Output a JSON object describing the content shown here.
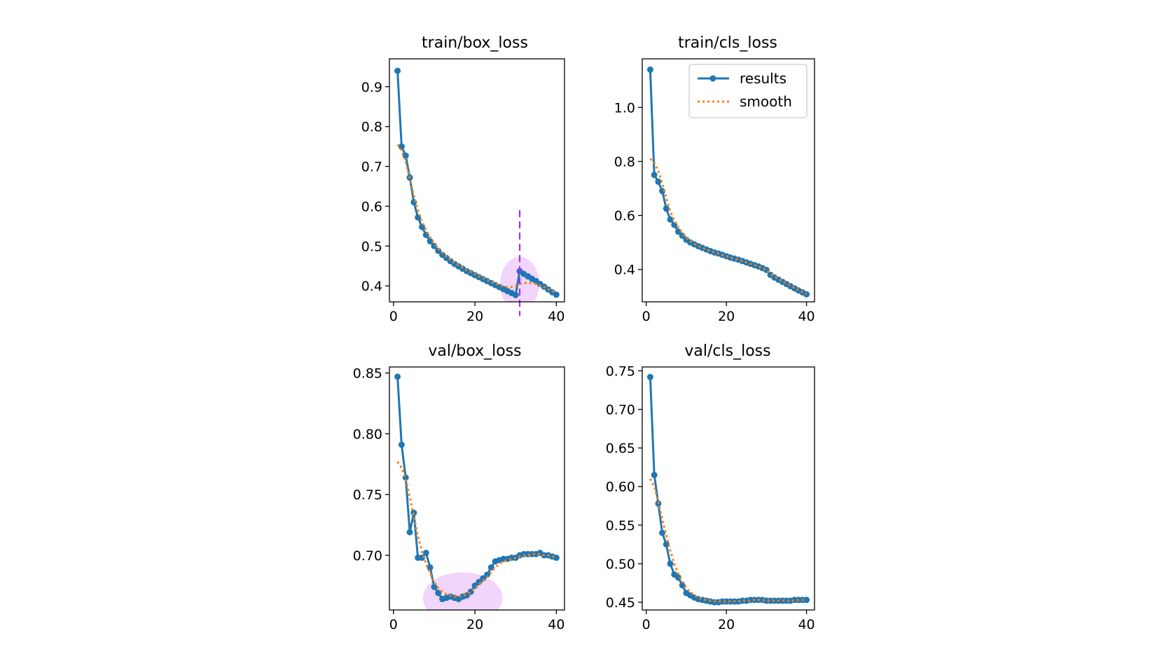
{
  "colors": {
    "results": "#1f77b4",
    "smooth": "#ff7f0e",
    "highlight": "#e6b3f5",
    "marker_line": "#9b30ff"
  },
  "chart_data": [
    {
      "type": "line",
      "title": "train/box_loss",
      "xlim": [
        -1,
        42
      ],
      "ylim": [
        0.36,
        0.97
      ],
      "xticks": [
        0,
        20,
        40
      ],
      "yticks": [
        0.4,
        0.5,
        0.6,
        0.7,
        0.8,
        0.9
      ],
      "tick_labels_x": [
        "0",
        "20",
        "40"
      ],
      "tick_labels_y": [
        "0.4",
        "0.5",
        "0.6",
        "0.7",
        "0.8",
        "0.9"
      ],
      "series": [
        {
          "name": "results",
          "style": "solid-markers",
          "x": [
            1,
            2,
            3,
            4,
            5,
            6,
            7,
            8,
            9,
            10,
            11,
            12,
            13,
            14,
            15,
            16,
            17,
            18,
            19,
            20,
            21,
            22,
            23,
            24,
            25,
            26,
            27,
            28,
            29,
            30,
            31,
            32,
            33,
            34,
            35,
            36,
            37,
            38,
            39,
            40
          ],
          "y": [
            0.94,
            0.75,
            0.727,
            0.672,
            0.61,
            0.572,
            0.548,
            0.528,
            0.512,
            0.5,
            0.488,
            0.478,
            0.47,
            0.462,
            0.455,
            0.449,
            0.443,
            0.437,
            0.432,
            0.427,
            0.422,
            0.417,
            0.412,
            0.407,
            0.402,
            0.397,
            0.392,
            0.387,
            0.382,
            0.377,
            0.437,
            0.43,
            0.424,
            0.418,
            0.412,
            0.405,
            0.398,
            0.391,
            0.384,
            0.378
          ]
        },
        {
          "name": "smooth",
          "style": "dotted",
          "x": [
            1,
            2,
            3,
            4,
            5,
            6,
            7,
            8,
            9,
            10,
            11,
            12,
            13,
            14,
            15,
            16,
            17,
            18,
            19,
            20,
            21,
            22,
            23,
            24,
            25,
            26,
            27,
            28,
            29,
            30,
            31,
            32,
            33,
            34,
            35,
            36,
            37,
            38,
            39,
            40
          ],
          "y": [
            0.755,
            0.74,
            0.71,
            0.67,
            0.626,
            0.59,
            0.562,
            0.54,
            0.522,
            0.507,
            0.494,
            0.483,
            0.474,
            0.466,
            0.458,
            0.452,
            0.446,
            0.44,
            0.435,
            0.43,
            0.425,
            0.42,
            0.415,
            0.41,
            0.406,
            0.402,
            0.399,
            0.397,
            0.397,
            0.4,
            0.405,
            0.407,
            0.408,
            0.407,
            0.405,
            0.401,
            0.397,
            0.392,
            0.387,
            0.382
          ]
        }
      ],
      "annotations": {
        "vline_x": 31,
        "vline_y": [
          0.325,
          0.59
        ],
        "ellipse": {
          "cx": 31,
          "cy": 0.405,
          "rx": 4.8,
          "ry": 0.068
        }
      }
    },
    {
      "type": "line",
      "title": "train/cls_loss",
      "xlim": [
        -1,
        42
      ],
      "ylim": [
        0.28,
        1.18
      ],
      "xticks": [
        0,
        20,
        40
      ],
      "yticks": [
        0.4,
        0.6,
        0.8,
        1.0
      ],
      "tick_labels_x": [
        "0",
        "20",
        "40"
      ],
      "tick_labels_y": [
        "0.4",
        "0.6",
        "0.8",
        "1.0"
      ],
      "legend": {
        "position": "top-right",
        "labels": [
          "results",
          "smooth"
        ]
      },
      "series": [
        {
          "name": "results",
          "style": "solid-markers",
          "x": [
            1,
            2,
            3,
            4,
            5,
            6,
            7,
            8,
            9,
            10,
            11,
            12,
            13,
            14,
            15,
            16,
            17,
            18,
            19,
            20,
            21,
            22,
            23,
            24,
            25,
            26,
            27,
            28,
            29,
            30,
            31,
            32,
            33,
            34,
            35,
            36,
            37,
            38,
            39,
            40
          ],
          "y": [
            1.14,
            0.75,
            0.725,
            0.69,
            0.625,
            0.585,
            0.565,
            0.54,
            0.525,
            0.51,
            0.5,
            0.493,
            0.486,
            0.48,
            0.474,
            0.468,
            0.463,
            0.459,
            0.454,
            0.449,
            0.444,
            0.44,
            0.436,
            0.431,
            0.426,
            0.421,
            0.416,
            0.411,
            0.405,
            0.398,
            0.38,
            0.37,
            0.362,
            0.354,
            0.346,
            0.338,
            0.33,
            0.322,
            0.315,
            0.308
          ]
        },
        {
          "name": "smooth",
          "style": "dotted",
          "x": [
            1,
            2,
            3,
            4,
            5,
            6,
            7,
            8,
            9,
            10,
            11,
            12,
            13,
            14,
            15,
            16,
            17,
            18,
            19,
            20,
            21,
            22,
            23,
            24,
            25,
            26,
            27,
            28,
            29,
            30,
            31,
            32,
            33,
            34,
            35,
            36,
            37,
            38,
            39,
            40
          ],
          "y": [
            0.81,
            0.795,
            0.765,
            0.72,
            0.665,
            0.615,
            0.582,
            0.556,
            0.535,
            0.518,
            0.505,
            0.495,
            0.487,
            0.48,
            0.474,
            0.468,
            0.463,
            0.459,
            0.454,
            0.449,
            0.444,
            0.44,
            0.436,
            0.431,
            0.426,
            0.421,
            0.416,
            0.411,
            0.405,
            0.398,
            0.384,
            0.374,
            0.365,
            0.356,
            0.348,
            0.34,
            0.332,
            0.324,
            0.316,
            0.309
          ]
        }
      ]
    },
    {
      "type": "line",
      "title": "val/box_loss",
      "xlim": [
        -1,
        42
      ],
      "ylim": [
        0.655,
        0.855
      ],
      "xticks": [
        0,
        20,
        40
      ],
      "yticks": [
        0.7,
        0.75,
        0.8,
        0.85
      ],
      "tick_labels_x": [
        "0",
        "20",
        "40"
      ],
      "tick_labels_y": [
        "0.70",
        "0.75",
        "0.80",
        "0.85"
      ],
      "series": [
        {
          "name": "results",
          "style": "solid-markers",
          "x": [
            1,
            2,
            3,
            4,
            5,
            6,
            7,
            8,
            9,
            10,
            11,
            12,
            13,
            14,
            15,
            16,
            17,
            18,
            19,
            20,
            21,
            22,
            23,
            24,
            25,
            26,
            27,
            28,
            29,
            30,
            31,
            32,
            33,
            34,
            35,
            36,
            37,
            38,
            39,
            40
          ],
          "y": [
            0.847,
            0.791,
            0.764,
            0.719,
            0.735,
            0.698,
            0.698,
            0.702,
            0.69,
            0.674,
            0.669,
            0.664,
            0.665,
            0.666,
            0.665,
            0.664,
            0.666,
            0.667,
            0.67,
            0.675,
            0.678,
            0.681,
            0.684,
            0.69,
            0.695,
            0.696,
            0.697,
            0.697,
            0.698,
            0.698,
            0.7,
            0.701,
            0.701,
            0.701,
            0.701,
            0.702,
            0.7,
            0.7,
            0.699,
            0.698
          ]
        },
        {
          "name": "smooth",
          "style": "dotted",
          "x": [
            1,
            2,
            3,
            4,
            5,
            6,
            7,
            8,
            9,
            10,
            11,
            12,
            13,
            14,
            15,
            16,
            17,
            18,
            19,
            20,
            21,
            22,
            23,
            24,
            25,
            26,
            27,
            28,
            29,
            30,
            31,
            32,
            33,
            34,
            35,
            36,
            37,
            38,
            39,
            40
          ],
          "y": [
            0.777,
            0.772,
            0.763,
            0.748,
            0.732,
            0.716,
            0.703,
            0.693,
            0.685,
            0.678,
            0.673,
            0.67,
            0.668,
            0.667,
            0.666,
            0.666,
            0.667,
            0.668,
            0.67,
            0.673,
            0.676,
            0.679,
            0.682,
            0.686,
            0.69,
            0.693,
            0.695,
            0.696,
            0.697,
            0.698,
            0.699,
            0.7,
            0.7,
            0.701,
            0.701,
            0.701,
            0.7,
            0.7,
            0.699,
            0.698
          ]
        }
      ],
      "annotations": {
        "ellipse": {
          "cx": 17,
          "cy": 0.665,
          "rx": 9.8,
          "ry": 0.021
        }
      }
    },
    {
      "type": "line",
      "title": "val/cls_loss",
      "xlim": [
        -1,
        42
      ],
      "ylim": [
        0.44,
        0.755
      ],
      "xticks": [
        0,
        20,
        40
      ],
      "yticks": [
        0.45,
        0.5,
        0.55,
        0.6,
        0.65,
        0.7,
        0.75
      ],
      "tick_labels_x": [
        "0",
        "20",
        "40"
      ],
      "tick_labels_y": [
        "0.45",
        "0.50",
        "0.55",
        "0.60",
        "0.65",
        "0.70",
        "0.75"
      ],
      "series": [
        {
          "name": "results",
          "style": "solid-markers",
          "x": [
            1,
            2,
            3,
            4,
            5,
            6,
            7,
            8,
            9,
            10,
            11,
            12,
            13,
            14,
            15,
            16,
            17,
            18,
            19,
            20,
            21,
            22,
            23,
            24,
            25,
            26,
            27,
            28,
            29,
            30,
            31,
            32,
            33,
            34,
            35,
            36,
            37,
            38,
            39,
            40
          ],
          "y": [
            0.742,
            0.615,
            0.578,
            0.54,
            0.525,
            0.5,
            0.486,
            0.482,
            0.472,
            0.462,
            0.459,
            0.456,
            0.454,
            0.453,
            0.452,
            0.451,
            0.45,
            0.45,
            0.451,
            0.451,
            0.451,
            0.451,
            0.451,
            0.452,
            0.452,
            0.453,
            0.453,
            0.453,
            0.453,
            0.452,
            0.452,
            0.452,
            0.452,
            0.452,
            0.452,
            0.452,
            0.453,
            0.453,
            0.453,
            0.453
          ]
        },
        {
          "name": "smooth",
          "style": "dotted",
          "x": [
            1,
            2,
            3,
            4,
            5,
            6,
            7,
            8,
            9,
            10,
            11,
            12,
            13,
            14,
            15,
            16,
            17,
            18,
            19,
            20,
            21,
            22,
            23,
            24,
            25,
            26,
            27,
            28,
            29,
            30,
            31,
            32,
            33,
            34,
            35,
            36,
            37,
            38,
            39,
            40
          ],
          "y": [
            0.61,
            0.6,
            0.58,
            0.558,
            0.537,
            0.517,
            0.5,
            0.487,
            0.477,
            0.469,
            0.463,
            0.459,
            0.456,
            0.454,
            0.453,
            0.452,
            0.451,
            0.451,
            0.451,
            0.451,
            0.451,
            0.451,
            0.451,
            0.452,
            0.452,
            0.452,
            0.453,
            0.453,
            0.453,
            0.452,
            0.452,
            0.452,
            0.452,
            0.452,
            0.452,
            0.452,
            0.452,
            0.453,
            0.453,
            0.453
          ]
        }
      ]
    }
  ]
}
